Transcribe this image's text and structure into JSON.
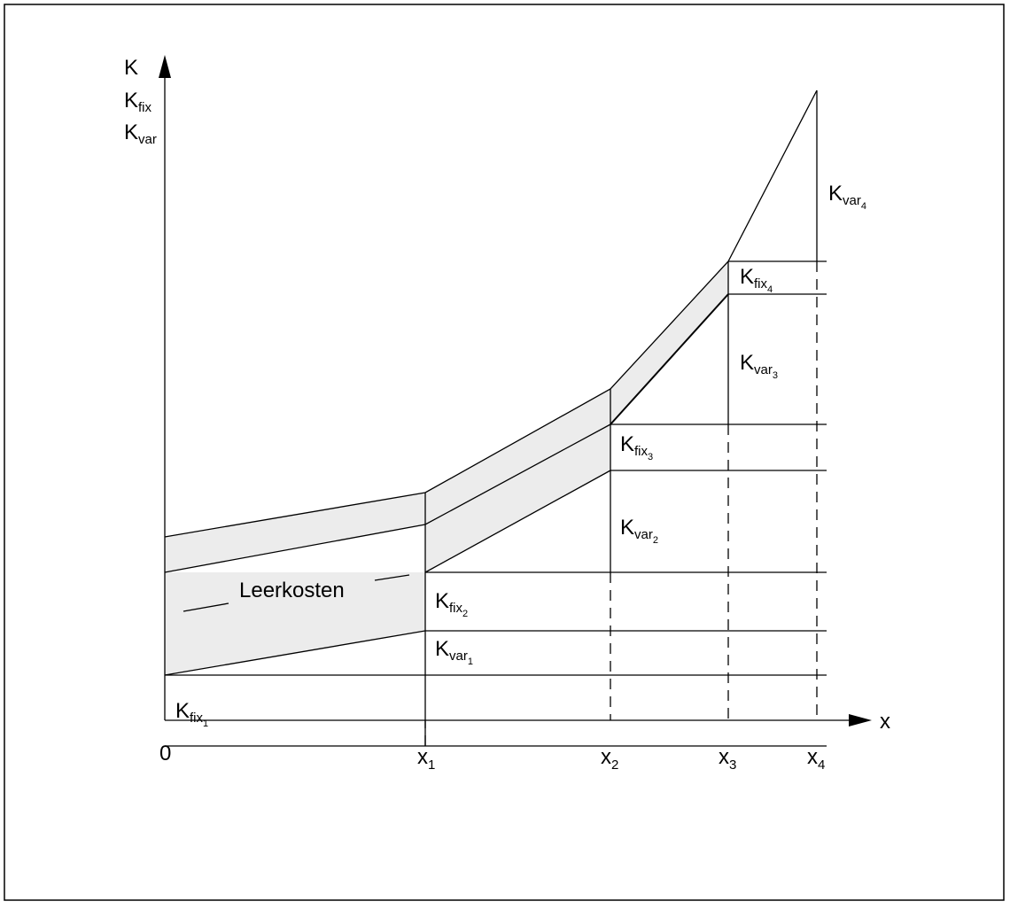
{
  "y_axis": {
    "labels": [
      {
        "main": "K",
        "sub": ""
      },
      {
        "main": "K",
        "sub": "fix"
      },
      {
        "main": "K",
        "sub": "var"
      }
    ]
  },
  "x_axis": {
    "label": "x",
    "ticks": [
      {
        "main": "0",
        "sub": ""
      },
      {
        "main": "x",
        "sub": "1"
      },
      {
        "main": "x",
        "sub": "2"
      },
      {
        "main": "x",
        "sub": "3"
      },
      {
        "main": "x",
        "sub": "4"
      }
    ]
  },
  "annotations": {
    "leerkosten": "Leerkosten",
    "segments": [
      {
        "main": "K",
        "sub": "fix",
        "idx": "1"
      },
      {
        "main": "K",
        "sub": "var",
        "idx": "1"
      },
      {
        "main": "K",
        "sub": "fix",
        "idx": "2"
      },
      {
        "main": "K",
        "sub": "var",
        "idx": "2"
      },
      {
        "main": "K",
        "sub": "fix",
        "idx": "3"
      },
      {
        "main": "K",
        "sub": "var",
        "idx": "3"
      },
      {
        "main": "K",
        "sub": "fix",
        "idx": "4"
      },
      {
        "main": "K",
        "sub": "var",
        "idx": "4"
      }
    ]
  },
  "colors": {
    "line": "#000000",
    "band": "#ececec",
    "background": "#ffffff"
  }
}
